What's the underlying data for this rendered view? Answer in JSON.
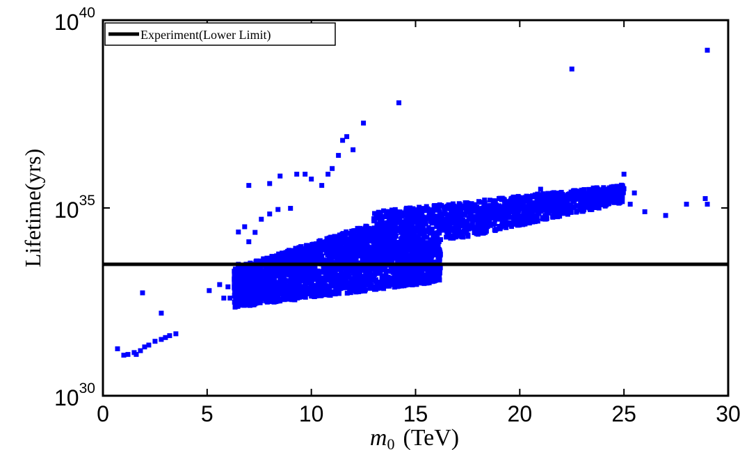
{
  "chart_data": {
    "type": "scatter",
    "xlabel": {
      "symbol": "m",
      "subscript": "0",
      "unit": "(TeV)"
    },
    "ylabel": "Lifetime(yrs)",
    "xlim": [
      0,
      30
    ],
    "ylim_log10": [
      30,
      40
    ],
    "yscale": "log",
    "grid": false,
    "x_ticks": [
      "0",
      "5",
      "10",
      "15",
      "20",
      "25",
      "30"
    ],
    "y_ticks": [
      {
        "base": "10",
        "exp": "30"
      },
      {
        "base": "10",
        "exp": "35"
      },
      {
        "base": "10",
        "exp": "40"
      }
    ],
    "legend": {
      "position": "top-left",
      "entries": [
        "Experiment(Lower Limit)"
      ]
    },
    "reference_line": {
      "name": "Experiment(Lower Limit)",
      "log10_y": 33.5,
      "color": "#000000"
    },
    "series": [
      {
        "marker_color": "#0000ff",
        "points_log10": [
          [
            0.7,
            31.25
          ],
          [
            1.0,
            31.08
          ],
          [
            1.2,
            31.1
          ],
          [
            1.5,
            31.15
          ],
          [
            1.6,
            31.1
          ],
          [
            1.8,
            31.2
          ],
          [
            2.0,
            31.3
          ],
          [
            2.2,
            31.35
          ],
          [
            2.5,
            31.45
          ],
          [
            2.8,
            31.5
          ],
          [
            3.0,
            31.55
          ],
          [
            3.2,
            31.6
          ],
          [
            3.5,
            31.65
          ],
          [
            1.9,
            32.74
          ],
          [
            2.8,
            32.2
          ],
          [
            5.1,
            32.8
          ],
          [
            5.6,
            32.96
          ],
          [
            5.8,
            32.6
          ],
          [
            6.0,
            32.9
          ],
          [
            6.1,
            32.6
          ],
          [
            6.3,
            33.1
          ],
          [
            6.5,
            33.5
          ],
          [
            6.5,
            34.36
          ],
          [
            6.8,
            34.5
          ],
          [
            7.0,
            34.1
          ],
          [
            7.3,
            34.35
          ],
          [
            7.6,
            34.7
          ],
          [
            8.0,
            34.84
          ],
          [
            8.4,
            34.96
          ],
          [
            7.0,
            35.6
          ],
          [
            8.0,
            35.65
          ],
          [
            8.5,
            35.85
          ],
          [
            9.0,
            34.99
          ],
          [
            9.3,
            35.9
          ],
          [
            9.7,
            35.9
          ],
          [
            10.0,
            35.77
          ],
          [
            10.5,
            35.6
          ],
          [
            10.8,
            35.9
          ],
          [
            11.0,
            36.05
          ],
          [
            11.3,
            36.4
          ],
          [
            11.5,
            36.8
          ],
          [
            11.7,
            36.9
          ],
          [
            12.0,
            36.55
          ],
          [
            12.5,
            37.26
          ],
          [
            14.2,
            37.8
          ],
          [
            22.5,
            38.7
          ],
          [
            29.0,
            39.2
          ],
          [
            25.0,
            35.9
          ],
          [
            25.3,
            35.1
          ],
          [
            26.0,
            34.9
          ],
          [
            27.0,
            34.8
          ],
          [
            28.0,
            35.1
          ],
          [
            28.9,
            35.25
          ],
          [
            29.0,
            35.1
          ],
          [
            21.0,
            35.5
          ],
          [
            22.0,
            35.3
          ],
          [
            23.0,
            35.45
          ],
          [
            24.0,
            35.3
          ],
          [
            25.5,
            35.4
          ]
        ],
        "density_regions": [
          {
            "desc": "main cloud",
            "x_range": [
              6.3,
              16.0
            ]
          },
          {
            "desc": "upper tail",
            "x_range": [
              13.0,
              25.0
            ]
          }
        ]
      }
    ]
  }
}
